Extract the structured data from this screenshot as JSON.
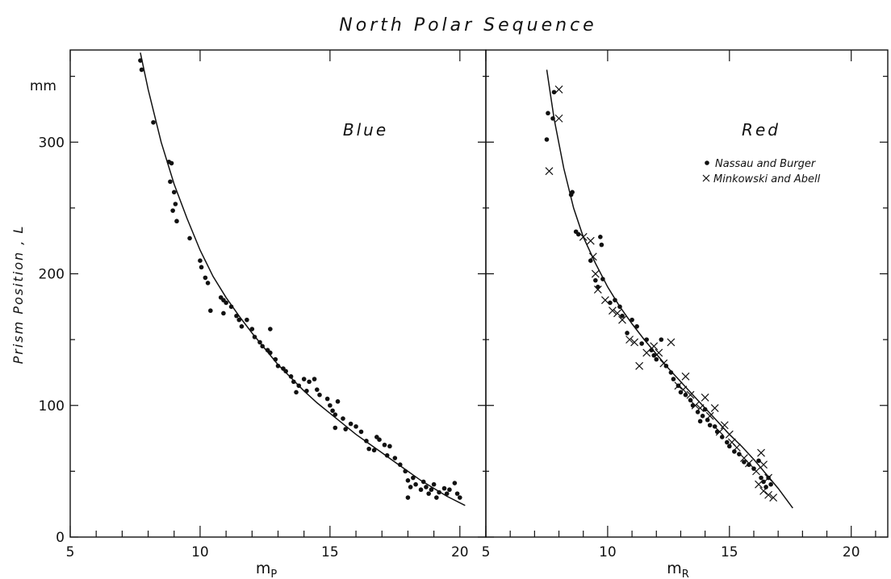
{
  "chart_data": {
    "type": "scatter",
    "title": "North Polar Sequence",
    "ylabel": "Prism Position , L",
    "y_unit": "mm",
    "ylim": [
      0,
      370
    ],
    "y_ticks": [
      0,
      100,
      200,
      300
    ],
    "grid": false,
    "panels": [
      {
        "name": "blue",
        "label": "Blue",
        "xlabel": "m",
        "xlabel_sub": "P",
        "xlim": [
          5,
          21
        ],
        "x_ticks": [
          5,
          10,
          15,
          20
        ],
        "curve": [
          [
            7.7,
            368
          ],
          [
            8.0,
            340
          ],
          [
            8.5,
            300
          ],
          [
            9.0,
            268
          ],
          [
            9.5,
            242
          ],
          [
            10.0,
            218
          ],
          [
            10.5,
            198
          ],
          [
            11.0,
            182
          ],
          [
            11.5,
            168
          ],
          [
            12.0,
            155
          ],
          [
            12.5,
            143
          ],
          [
            13.0,
            131
          ],
          [
            13.5,
            121
          ],
          [
            14.0,
            111
          ],
          [
            14.5,
            102
          ],
          [
            15.0,
            94
          ],
          [
            15.5,
            86
          ],
          [
            16.0,
            78
          ],
          [
            16.5,
            71
          ],
          [
            17.0,
            64
          ],
          [
            17.5,
            57
          ],
          [
            18.0,
            50
          ],
          [
            18.5,
            43
          ],
          [
            19.0,
            37
          ],
          [
            19.5,
            31
          ],
          [
            20.2,
            24
          ]
        ],
        "series": [
          {
            "name": "",
            "marker": "dot",
            "points": [
              [
                7.7,
                362
              ],
              [
                7.75,
                355
              ],
              [
                8.2,
                315
              ],
              [
                8.8,
                285
              ],
              [
                8.9,
                284
              ],
              [
                8.85,
                270
              ],
              [
                9.0,
                262
              ],
              [
                9.05,
                253
              ],
              [
                8.95,
                248
              ],
              [
                9.1,
                240
              ],
              [
                9.6,
                227
              ],
              [
                10.0,
                210
              ],
              [
                10.05,
                205
              ],
              [
                10.2,
                197
              ],
              [
                10.3,
                193
              ],
              [
                10.4,
                172
              ],
              [
                10.8,
                182
              ],
              [
                10.9,
                180
              ],
              [
                11.0,
                178
              ],
              [
                11.2,
                175
              ],
              [
                10.9,
                170
              ],
              [
                11.4,
                168
              ],
              [
                11.5,
                165
              ],
              [
                11.6,
                160
              ],
              [
                11.8,
                165
              ],
              [
                12.0,
                158
              ],
              [
                12.1,
                152
              ],
              [
                12.3,
                148
              ],
              [
                12.4,
                145
              ],
              [
                12.6,
                142
              ],
              [
                12.7,
                158
              ],
              [
                12.7,
                140
              ],
              [
                12.9,
                135
              ],
              [
                13.0,
                130
              ],
              [
                13.2,
                128
              ],
              [
                13.3,
                126
              ],
              [
                13.5,
                122
              ],
              [
                13.6,
                118
              ],
              [
                13.7,
                110
              ],
              [
                13.8,
                115
              ],
              [
                14.0,
                120
              ],
              [
                14.1,
                111
              ],
              [
                14.2,
                118
              ],
              [
                14.4,
                120
              ],
              [
                14.5,
                112
              ],
              [
                14.6,
                108
              ],
              [
                14.9,
                105
              ],
              [
                15.0,
                100
              ],
              [
                15.1,
                96
              ],
              [
                15.2,
                93
              ],
              [
                15.3,
                103
              ],
              [
                15.5,
                90
              ],
              [
                15.2,
                83
              ],
              [
                15.6,
                82
              ],
              [
                15.8,
                86
              ],
              [
                16.0,
                84
              ],
              [
                16.2,
                80
              ],
              [
                16.4,
                73
              ],
              [
                16.5,
                67
              ],
              [
                16.7,
                66
              ],
              [
                16.8,
                76
              ],
              [
                16.9,
                74
              ],
              [
                17.1,
                70
              ],
              [
                17.2,
                62
              ],
              [
                17.3,
                69
              ],
              [
                17.5,
                60
              ],
              [
                17.7,
                55
              ],
              [
                17.9,
                50
              ],
              [
                18.0,
                43
              ],
              [
                18.1,
                38
              ],
              [
                18.0,
                30
              ],
              [
                18.2,
                45
              ],
              [
                18.3,
                40
              ],
              [
                18.5,
                36
              ],
              [
                18.6,
                42
              ],
              [
                18.7,
                38
              ],
              [
                18.8,
                33
              ],
              [
                18.9,
                36
              ],
              [
                19.0,
                40
              ],
              [
                19.1,
                30
              ],
              [
                19.2,
                34
              ],
              [
                19.4,
                37
              ],
              [
                19.5,
                33
              ],
              [
                19.6,
                36
              ],
              [
                19.8,
                41
              ],
              [
                19.9,
                33
              ],
              [
                20.0,
                30
              ]
            ]
          }
        ]
      },
      {
        "name": "red",
        "label": "Red",
        "xlabel": "m",
        "xlabel_sub": "R",
        "xlim": [
          5,
          21.5
        ],
        "x_ticks": [
          5,
          10,
          15,
          20
        ],
        "curve": [
          [
            7.5,
            355
          ],
          [
            7.8,
            318
          ],
          [
            8.2,
            280
          ],
          [
            8.6,
            250
          ],
          [
            9.0,
            228
          ],
          [
            9.5,
            208
          ],
          [
            10.0,
            190
          ],
          [
            10.5,
            175
          ],
          [
            11.0,
            162
          ],
          [
            11.5,
            150
          ],
          [
            12.0,
            139
          ],
          [
            12.5,
            128
          ],
          [
            13.0,
            118
          ],
          [
            13.5,
            108
          ],
          [
            14.0,
            98
          ],
          [
            14.5,
            88
          ],
          [
            15.0,
            78
          ],
          [
            15.5,
            69
          ],
          [
            16.0,
            59
          ],
          [
            16.5,
            48
          ],
          [
            17.0,
            37
          ],
          [
            17.6,
            22
          ]
        ],
        "series": [
          {
            "name": "Nassau and Burger",
            "marker": "dot",
            "points": [
              [
                7.55,
                322
              ],
              [
                7.5,
                302
              ],
              [
                7.8,
                338
              ],
              [
                7.75,
                318
              ],
              [
                8.5,
                260
              ],
              [
                8.55,
                262
              ],
              [
                8.7,
                232
              ],
              [
                8.8,
                230
              ],
              [
                9.3,
                210
              ],
              [
                9.5,
                195
              ],
              [
                9.6,
                190
              ],
              [
                9.7,
                228
              ],
              [
                9.75,
                222
              ],
              [
                9.8,
                196
              ],
              [
                10.1,
                178
              ],
              [
                10.3,
                180
              ],
              [
                10.5,
                175
              ],
              [
                10.6,
                168
              ],
              [
                10.8,
                155
              ],
              [
                11.0,
                165
              ],
              [
                11.2,
                160
              ],
              [
                11.4,
                147
              ],
              [
                11.6,
                150
              ],
              [
                11.8,
                142
              ],
              [
                11.9,
                138
              ],
              [
                12.0,
                135
              ],
              [
                12.2,
                150
              ],
              [
                12.4,
                130
              ],
              [
                12.6,
                125
              ],
              [
                12.7,
                120
              ],
              [
                12.9,
                115
              ],
              [
                13.0,
                110
              ],
              [
                13.2,
                108
              ],
              [
                13.4,
                104
              ],
              [
                13.5,
                100
              ],
              [
                13.7,
                95
              ],
              [
                13.8,
                88
              ],
              [
                13.9,
                92
              ],
              [
                14.0,
                97
              ],
              [
                14.1,
                89
              ],
              [
                14.2,
                85
              ],
              [
                14.4,
                84
              ],
              [
                14.5,
                80
              ],
              [
                14.7,
                76
              ],
              [
                14.9,
                72
              ],
              [
                15.0,
                69
              ],
              [
                15.2,
                65
              ],
              [
                15.4,
                63
              ],
              [
                15.6,
                57
              ],
              [
                15.8,
                55
              ],
              [
                16.0,
                52
              ],
              [
                16.2,
                58
              ],
              [
                16.3,
                45
              ],
              [
                16.4,
                42
              ],
              [
                16.5,
                38
              ],
              [
                16.6,
                45
              ],
              [
                16.7,
                40
              ]
            ]
          },
          {
            "name": "Minkowski and Abell",
            "marker": "cross",
            "points": [
              [
                8.0,
                340
              ],
              [
                8.0,
                318
              ],
              [
                7.6,
                278
              ],
              [
                9.0,
                228
              ],
              [
                9.3,
                225
              ],
              [
                9.4,
                213
              ],
              [
                9.5,
                200
              ],
              [
                9.6,
                188
              ],
              [
                9.9,
                180
              ],
              [
                10.2,
                172
              ],
              [
                10.4,
                170
              ],
              [
                10.6,
                165
              ],
              [
                10.9,
                150
              ],
              [
                11.1,
                148
              ],
              [
                11.3,
                130
              ],
              [
                11.6,
                140
              ],
              [
                11.9,
                145
              ],
              [
                12.1,
                140
              ],
              [
                12.3,
                132
              ],
              [
                12.6,
                148
              ],
              [
                12.9,
                115
              ],
              [
                13.1,
                112
              ],
              [
                13.2,
                122
              ],
              [
                13.4,
                108
              ],
              [
                13.6,
                100
              ],
              [
                13.8,
                98
              ],
              [
                14.0,
                106
              ],
              [
                14.2,
                92
              ],
              [
                14.4,
                98
              ],
              [
                14.6,
                80
              ],
              [
                14.8,
                85
              ],
              [
                15.0,
                78
              ],
              [
                15.1,
                72
              ],
              [
                15.3,
                68
              ],
              [
                15.6,
                60
              ],
              [
                15.8,
                56
              ],
              [
                16.1,
                50
              ],
              [
                16.3,
                64
              ],
              [
                16.4,
                55
              ],
              [
                16.6,
                45
              ],
              [
                16.2,
                40
              ],
              [
                16.4,
                35
              ],
              [
                16.6,
                32
              ],
              [
                16.8,
                30
              ]
            ]
          }
        ],
        "legend": {
          "position": "top-right",
          "items": [
            {
              "marker": "dot",
              "label": "Nassau and Burger"
            },
            {
              "marker": "cross",
              "label": "Minkowski and Abell"
            }
          ]
        }
      }
    ]
  }
}
